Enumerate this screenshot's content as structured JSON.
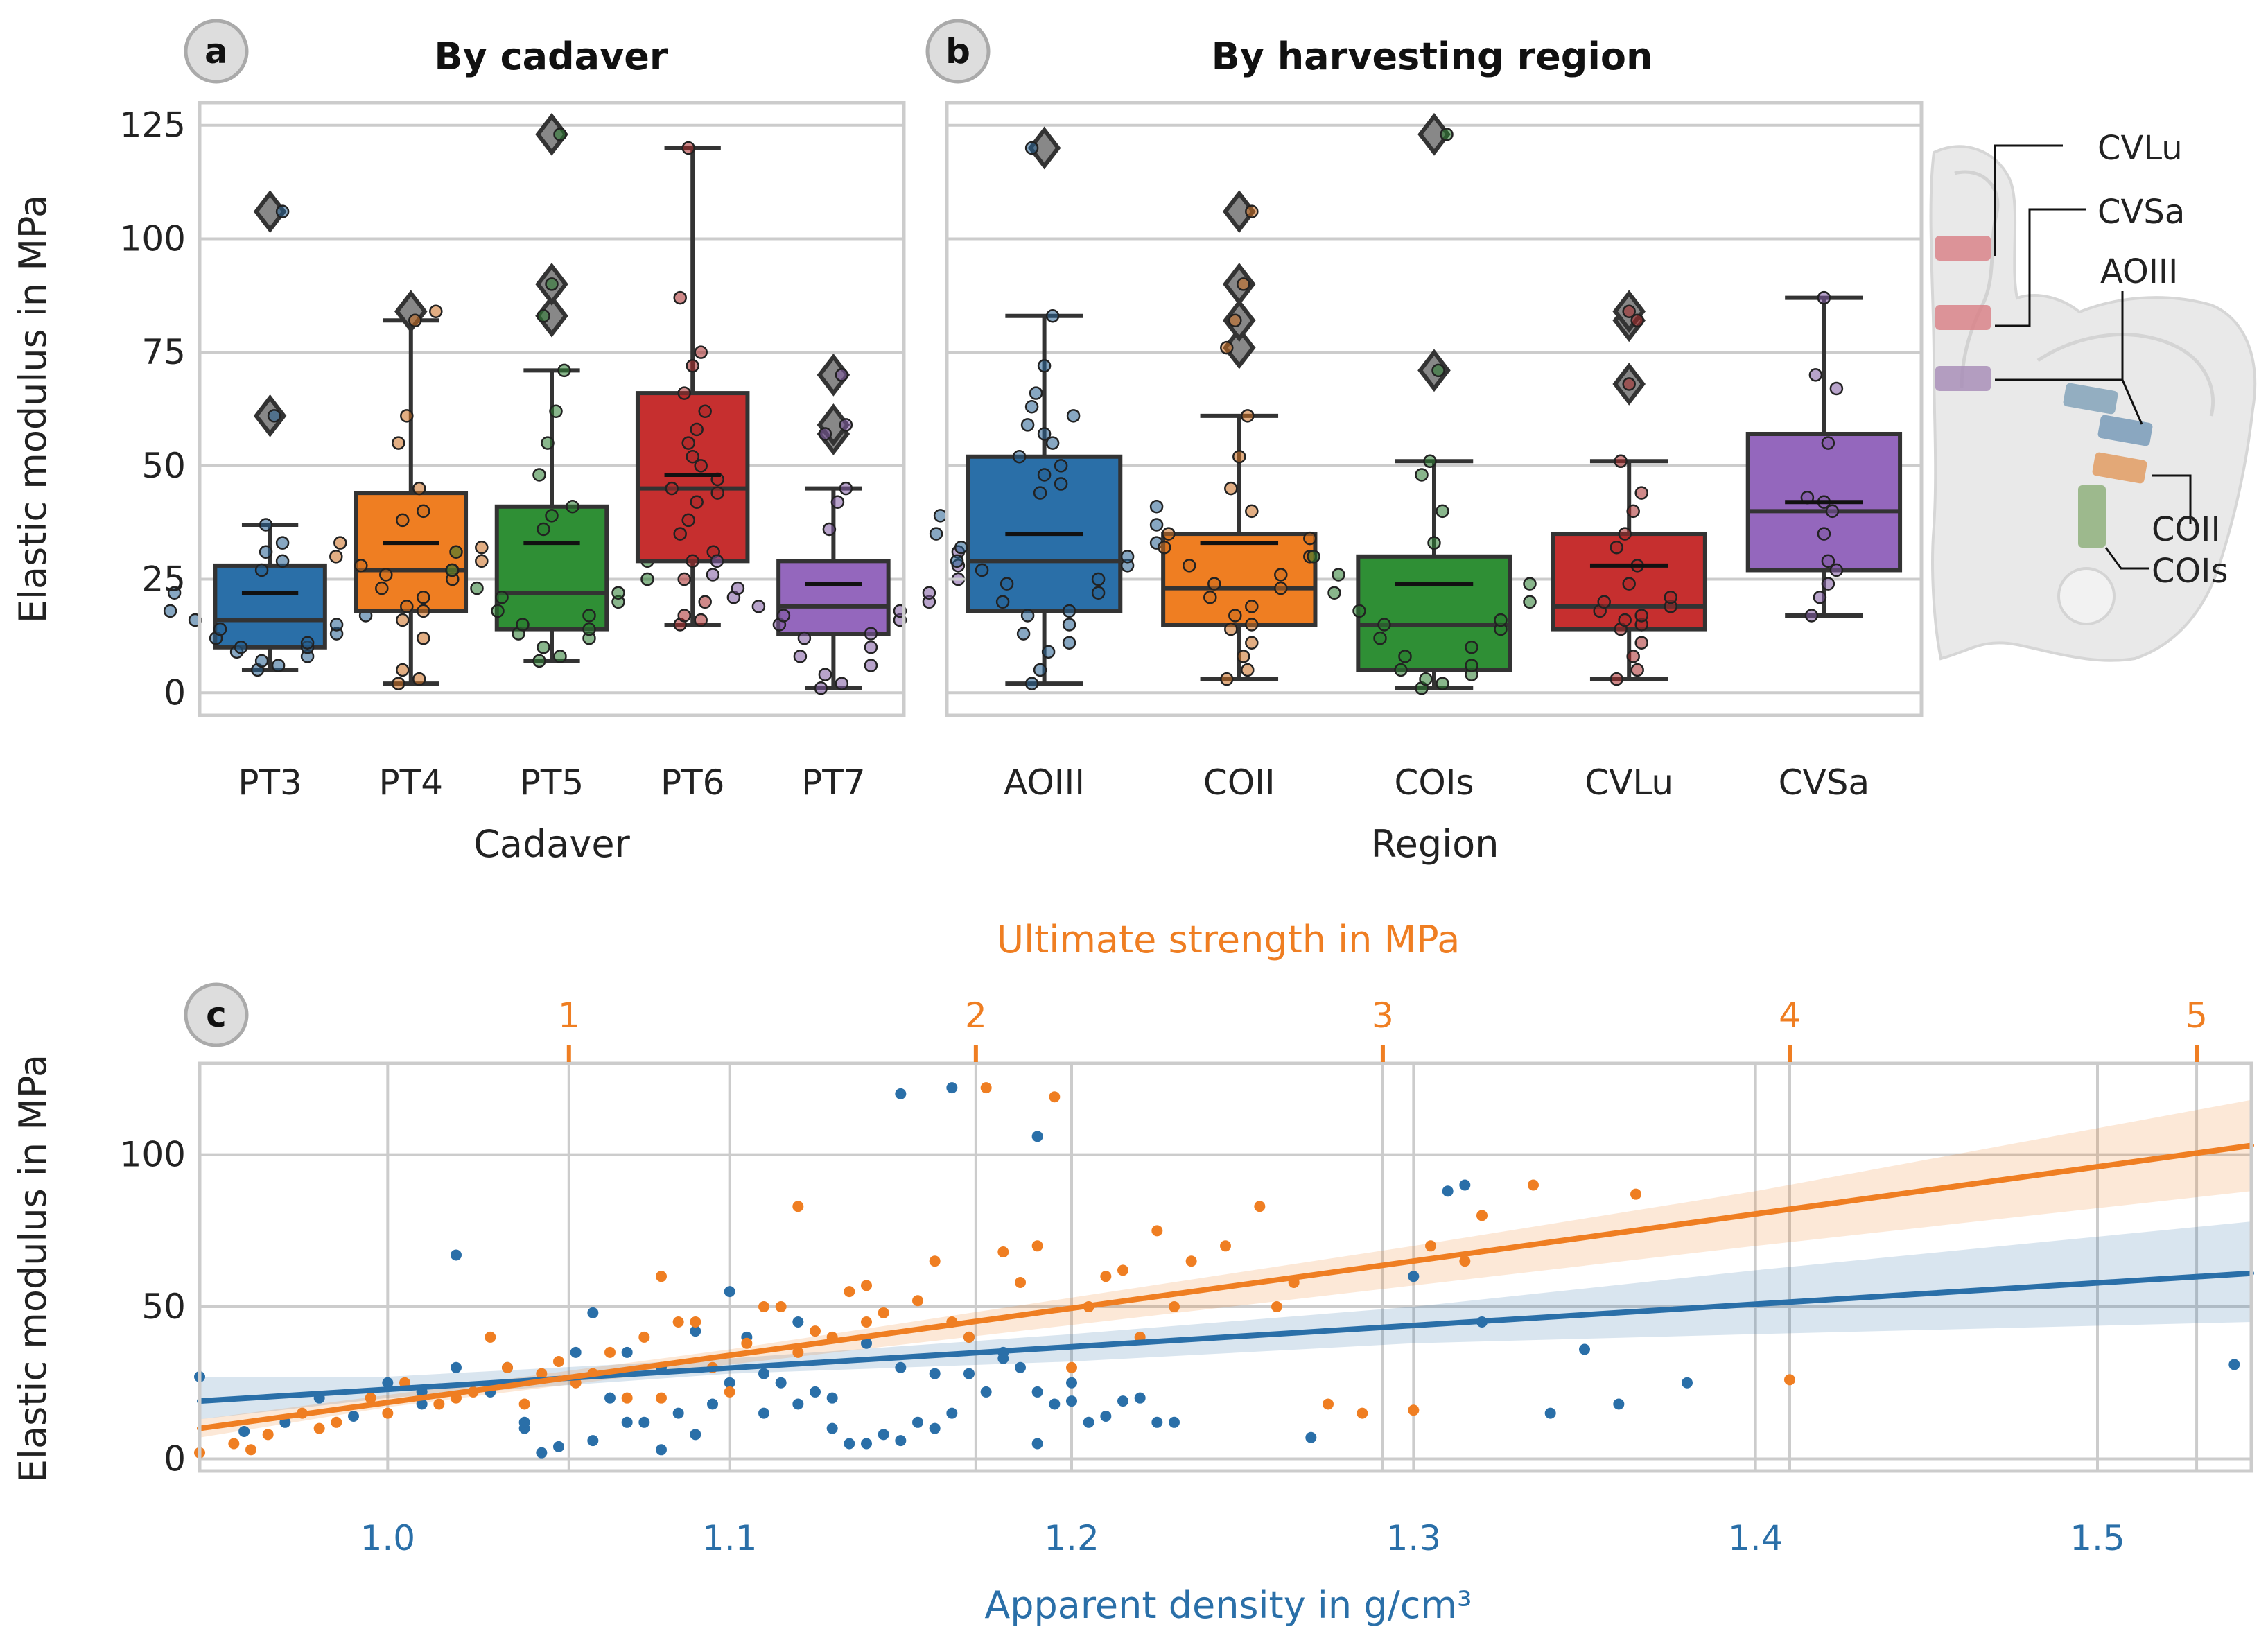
{
  "colors": {
    "blue": "#2a6fa8",
    "orange": "#ef7e22",
    "green": "#2f8f35",
    "red": "#c62f2f",
    "purple": "#9467bd",
    "grid": "#cccccc",
    "box_edge": "#333333"
  },
  "chart_data": [
    {
      "panel": "a",
      "type": "box",
      "title": "By cadaver",
      "xlabel": "Cadaver",
      "ylabel": "Elastic modulus in MPa",
      "ylim": [
        -5,
        130
      ],
      "yticks": [
        0,
        25,
        50,
        75,
        100,
        125
      ],
      "categories": [
        "PT3",
        "PT4",
        "PT5",
        "PT6",
        "PT7"
      ],
      "box_colors": [
        "#2a6fa8",
        "#ef7e22",
        "#2f8f35",
        "#c62f2f",
        "#9467bd"
      ],
      "boxes": [
        {
          "category": "PT3",
          "whisker_low": 5,
          "q1": 10,
          "median": 16,
          "q3": 28,
          "whisker_high": 37,
          "mean": 22,
          "outliers": [
            61,
            106
          ],
          "points": [
            5,
            6,
            7,
            8,
            9,
            10,
            10,
            11,
            12,
            13,
            14,
            15,
            16,
            17,
            18,
            20,
            22,
            24,
            27,
            29,
            31,
            33,
            37,
            61,
            106
          ]
        },
        {
          "category": "PT4",
          "whisker_low": 2,
          "q1": 18,
          "median": 27,
          "q3": 44,
          "whisker_high": 82,
          "mean": 33,
          "outliers": [
            84
          ],
          "points": [
            2,
            3,
            5,
            12,
            16,
            18,
            19,
            21,
            23,
            25,
            26,
            27,
            28,
            29,
            30,
            32,
            33,
            35,
            38,
            40,
            45,
            55,
            61,
            82,
            84
          ]
        },
        {
          "category": "PT5",
          "whisker_low": 7,
          "q1": 14,
          "median": 22,
          "q3": 41,
          "whisker_high": 71,
          "mean": 33,
          "outliers": [
            83,
            90,
            123
          ],
          "points": [
            7,
            8,
            10,
            12,
            13,
            14,
            15,
            17,
            18,
            20,
            21,
            22,
            23,
            25,
            27,
            29,
            31,
            33,
            36,
            39,
            41,
            48,
            55,
            62,
            71,
            83,
            90,
            123
          ]
        },
        {
          "category": "PT6",
          "whisker_low": 15,
          "q1": 29,
          "median": 45,
          "q3": 66,
          "whisker_high": 120,
          "mean": 48,
          "outliers": [],
          "points": [
            15,
            16,
            17,
            20,
            25,
            29,
            31,
            35,
            38,
            42,
            44,
            45,
            47,
            50,
            52,
            55,
            58,
            62,
            66,
            72,
            75,
            87,
            120
          ]
        },
        {
          "category": "PT7",
          "whisker_low": 1,
          "q1": 13,
          "median": 19,
          "q3": 29,
          "whisker_high": 45,
          "mean": 24,
          "outliers": [
            57,
            59,
            70
          ],
          "points": [
            1,
            2,
            4,
            6,
            8,
            10,
            12,
            13,
            15,
            16,
            17,
            18,
            19,
            20,
            21,
            22,
            23,
            25,
            26,
            28,
            29,
            31,
            36,
            42,
            45,
            57,
            59,
            70
          ]
        }
      ]
    },
    {
      "panel": "b",
      "type": "box",
      "title": "By harvesting region",
      "xlabel": "Region",
      "ylabel": "",
      "ylim": [
        -5,
        130
      ],
      "yticks": [
        0,
        25,
        50,
        75,
        100,
        125
      ],
      "categories": [
        "AOIII",
        "COII",
        "COIs",
        "CVLu",
        "CVSa"
      ],
      "box_colors": [
        "#2a6fa8",
        "#ef7e22",
        "#2f8f35",
        "#c62f2f",
        "#9467bd"
      ],
      "boxes": [
        {
          "category": "AOIII",
          "whisker_low": 2,
          "q1": 18,
          "median": 29,
          "q3": 52,
          "whisker_high": 83,
          "mean": 35,
          "outliers": [
            120
          ],
          "points": [
            2,
            5,
            9,
            11,
            13,
            15,
            17,
            18,
            20,
            22,
            24,
            25,
            27,
            28,
            29,
            30,
            32,
            33,
            35,
            37,
            39,
            41,
            44,
            46,
            48,
            50,
            52,
            55,
            57,
            59,
            61,
            63,
            66,
            72,
            83,
            120
          ]
        },
        {
          "category": "COII",
          "whisker_low": 3,
          "q1": 15,
          "median": 23,
          "q3": 35,
          "whisker_high": 61,
          "mean": 33,
          "outliers": [
            76,
            82,
            90,
            106
          ],
          "points": [
            3,
            5,
            8,
            11,
            14,
            15,
            17,
            19,
            21,
            23,
            24,
            26,
            28,
            30,
            32,
            34,
            35,
            40,
            45,
            52,
            61,
            76,
            82,
            90,
            106
          ]
        },
        {
          "category": "COIs",
          "whisker_low": 1,
          "q1": 5,
          "median": 15,
          "q3": 30,
          "whisker_high": 51,
          "mean": 24,
          "outliers": [
            71,
            123
          ],
          "points": [
            1,
            2,
            3,
            4,
            5,
            6,
            8,
            10,
            12,
            14,
            15,
            16,
            18,
            20,
            22,
            24,
            26,
            28,
            30,
            33,
            40,
            48,
            51,
            71,
            123
          ]
        },
        {
          "category": "CVLu",
          "whisker_low": 3,
          "q1": 14,
          "median": 19,
          "q3": 35,
          "whisker_high": 51,
          "mean": 28,
          "outliers": [
            68,
            82,
            84
          ],
          "points": [
            3,
            5,
            8,
            11,
            14,
            15,
            16,
            17,
            18,
            19,
            20,
            21,
            24,
            28,
            32,
            35,
            40,
            44,
            51,
            68,
            82,
            84
          ]
        },
        {
          "category": "CVSa",
          "whisker_low": 17,
          "q1": 27,
          "median": 40,
          "q3": 57,
          "whisker_high": 87,
          "mean": 42,
          "outliers": [],
          "points": [
            17,
            21,
            24,
            27,
            29,
            35,
            40,
            42,
            43,
            55,
            67,
            70,
            87
          ]
        }
      ],
      "annotation_labels": [
        "CVLu",
        "CVSa",
        "AOIII",
        "COII",
        "COIs"
      ]
    },
    {
      "panel": "c",
      "type": "scatter",
      "xlabel": "Apparent density in g/cm³",
      "ylabel": "Elastic modulus in MPa",
      "top_xlabel": "Ultimate strength in MPa",
      "xlim": [
        0.945,
        1.545
      ],
      "ylim": [
        -4,
        130
      ],
      "xticks": [
        "1.0",
        "1.1",
        "1.2",
        "1.3",
        "1.4",
        "1.5"
      ],
      "yticks": [
        0,
        50,
        100
      ],
      "top_xticks": [
        1,
        2,
        3,
        4,
        5
      ],
      "top_xtick_density_positions": [
        1.053,
        1.172,
        1.291,
        1.41,
        1.529
      ],
      "series": [
        {
          "name": "Apparent density",
          "color": "#2a6fa8",
          "fit_line": {
            "x": [
              0.945,
              1.545
            ],
            "y": [
              19,
              61
            ]
          },
          "ci_band": {
            "x": [
              0.945,
              1.0,
              1.1,
              1.2,
              1.3,
              1.4,
              1.545
            ],
            "lower": [
              13,
              20,
              28,
              32,
              38,
              41,
              45
            ],
            "upper": [
              27,
              27,
              33,
              41,
              50,
              62,
              78
            ]
          },
          "x": [
            0.945,
            0.958,
            0.97,
            0.98,
            0.99,
            1.0,
            1.01,
            1.02,
            1.03,
            1.04,
            1.05,
            1.055,
            1.06,
            1.07,
            1.08,
            1.09,
            1.1,
            1.105,
            1.11,
            1.12,
            1.13,
            1.14,
            1.15,
            1.16,
            1.17,
            1.18,
            1.19,
            1.2,
            1.21,
            1.22,
            1.23,
            1.27,
            1.31,
            1.32,
            1.35,
            1.36,
            1.38,
            1.54,
            1.02,
            1.06,
            1.08,
            1.09,
            1.1,
            1.12,
            1.13,
            1.15,
            1.16,
            1.18,
            1.19,
            1.2,
            1.045,
            1.075,
            1.095,
            1.125,
            1.145,
            1.165,
            1.185,
            1.205,
            1.035,
            1.065,
            1.085,
            1.115,
            1.135,
            1.155,
            1.175,
            1.195,
            1.215,
            1.225,
            1.3,
            1.315,
            1.34,
            1.01,
            1.04,
            1.07,
            1.11,
            1.14,
            1.17,
            1.15,
            1.165,
            1.19
          ],
          "y": [
            27,
            9,
            12,
            20,
            14,
            25,
            18,
            30,
            22,
            10,
            4,
            35,
            48,
            12,
            30,
            8,
            25,
            40,
            15,
            45,
            20,
            38,
            30,
            10,
            28,
            35,
            22,
            19,
            14,
            20,
            12,
            7,
            88,
            45,
            36,
            18,
            25,
            31,
            67,
            6,
            3,
            42,
            55,
            18,
            10,
            6,
            28,
            33,
            5,
            25,
            2,
            12,
            18,
            22,
            8,
            15,
            30,
            12,
            30,
            20,
            15,
            25,
            5,
            12,
            22,
            18,
            19,
            12,
            60,
            90,
            15,
            22,
            12,
            35,
            28,
            5,
            40,
            120,
            122,
            106
          ]
        },
        {
          "name": "Ultimate strength",
          "color": "#ef7e22",
          "fit_line": {
            "x": [
              0.945,
              1.545
            ],
            "y": [
              10,
              103
            ]
          },
          "ci_band": {
            "x": [
              0.945,
              1.0,
              1.1,
              1.2,
              1.3,
              1.4,
              1.545
            ],
            "lower": [
              7,
              17,
              31,
              44,
              57,
              70,
              88
            ],
            "upper": [
              13,
              21,
              36,
              53,
              70,
              88,
              118
            ]
          },
          "x": [
            0.945,
            0.955,
            0.965,
            0.975,
            0.985,
            0.995,
            1.005,
            1.015,
            1.025,
            1.035,
            1.045,
            1.055,
            1.065,
            1.075,
            1.085,
            1.095,
            1.105,
            1.115,
            1.125,
            1.135,
            1.145,
            1.155,
            1.165,
            1.175,
            1.185,
            1.195,
            1.205,
            1.215,
            1.225,
            1.235,
            1.245,
            1.255,
            1.265,
            1.275,
            1.285,
            1.305,
            1.315,
            1.335,
            1.365,
            1.41,
            0.96,
            0.98,
            1.0,
            1.02,
            1.04,
            1.06,
            1.08,
            1.1,
            1.12,
            1.14,
            1.16,
            1.18,
            1.2,
            1.22,
            1.26,
            1.3,
            1.32,
            1.05,
            1.07,
            1.09,
            1.11,
            1.13,
            1.17,
            1.19,
            1.21,
            1.08,
            1.12,
            1.14,
            1.23,
            1.03
          ],
          "y": [
            2,
            5,
            8,
            15,
            12,
            20,
            25,
            18,
            22,
            30,
            28,
            25,
            35,
            40,
            45,
            30,
            38,
            50,
            42,
            55,
            48,
            52,
            45,
            122,
            58,
            119,
            50,
            62,
            75,
            65,
            70,
            83,
            58,
            18,
            15,
            70,
            65,
            90,
            87,
            26,
            3,
            10,
            15,
            20,
            18,
            28,
            60,
            22,
            83,
            57,
            65,
            68,
            30,
            40,
            50,
            16,
            80,
            32,
            20,
            45,
            50,
            40,
            40,
            70,
            60,
            20,
            35,
            45,
            50,
            40
          ]
        }
      ]
    }
  ]
}
